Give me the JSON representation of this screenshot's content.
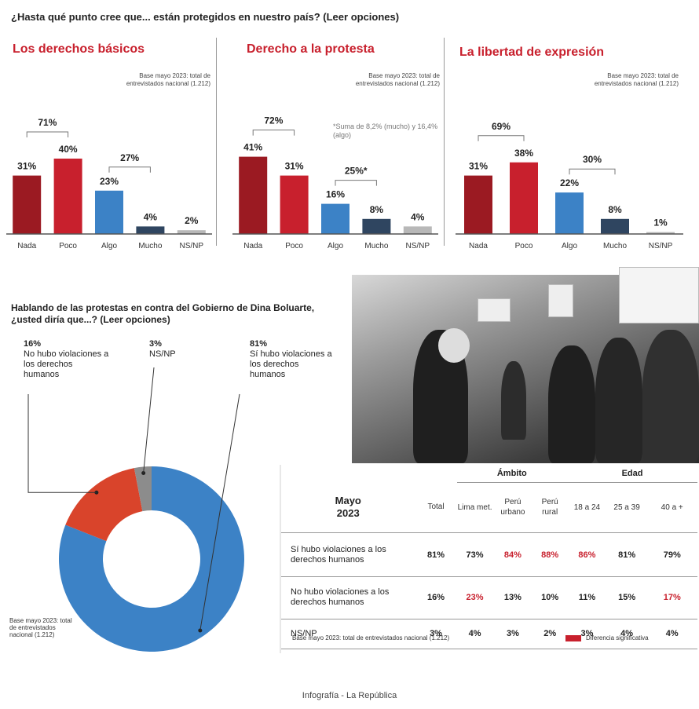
{
  "main_question": "¿Hasta qué punto cree que... están protegidos en nuestro país? (Leer opciones)",
  "colors": {
    "dark_red": "#9b1a22",
    "red": "#c8202d",
    "blue": "#3c82c6",
    "navy": "#2f4560",
    "grey": "#b8b8b8",
    "accent_text": "#c8202d"
  },
  "chart_data": [
    {
      "type": "bar",
      "title": "Los derechos básicos",
      "base_note": "Base mayo 2023: total de entrevistados nacional (1.212)",
      "categories": [
        "Nada",
        "Poco",
        "Algo",
        "Mucho",
        "NS/NP"
      ],
      "values": [
        31,
        40,
        23,
        4,
        2
      ],
      "value_labels": [
        "31%",
        "40%",
        "23%",
        "4%",
        "2%"
      ],
      "groups": [
        {
          "label": "71%",
          "from": 0,
          "to": 1
        },
        {
          "label": "27%",
          "from": 2,
          "to": 3
        }
      ],
      "ylim": [
        0,
        50
      ]
    },
    {
      "type": "bar",
      "title": "Derecho a la protesta",
      "base_note": "Base mayo 2023: total de entrevistados nacional (1.212)",
      "categories": [
        "Nada",
        "Poco",
        "Algo",
        "Mucho",
        "NS/NP"
      ],
      "values": [
        41,
        31,
        16,
        8,
        4
      ],
      "value_labels": [
        "41%",
        "31%",
        "16%",
        "8%",
        "4%"
      ],
      "groups": [
        {
          "label": "72%",
          "from": 0,
          "to": 1
        },
        {
          "label": "25%*",
          "from": 2,
          "to": 3
        }
      ],
      "footnote": "*Suma de 8,2% (mucho) y 16,4% (algo)",
      "ylim": [
        0,
        50
      ]
    },
    {
      "type": "bar",
      "title": "La libertad de expresión",
      "base_note": "Base mayo 2023: total de entrevistados nacional (1.212)",
      "categories": [
        "Nada",
        "Poco",
        "Algo",
        "Mucho",
        "NS/NP"
      ],
      "values": [
        31,
        38,
        22,
        8,
        1
      ],
      "value_labels": [
        "31%",
        "38%",
        "22%",
        "8%",
        "1%"
      ],
      "groups": [
        {
          "label": "69%",
          "from": 0,
          "to": 1
        },
        {
          "label": "30%",
          "from": 2,
          "to": 3
        }
      ],
      "ylim": [
        0,
        50
      ]
    },
    {
      "type": "pie",
      "title": "Hablando de las protestas en contra del Gobierno de Dina Boluarte, ¿usted diría que...? (Leer opciones)",
      "slices": [
        {
          "value": 81,
          "pct": "81%",
          "label": "Sí hubo violaciones a los derechos humanos",
          "color": "#3c82c6"
        },
        {
          "value": 16,
          "pct": "16%",
          "label": "No hubo violaciones a los derechos humanos",
          "color": "#d9442b"
        },
        {
          "value": 3,
          "pct": "3%",
          "label": "NS/NP",
          "color": "#8c8c8c"
        }
      ],
      "base_note": "Base mayo 2023: total de entrevistados nacional (1.212)"
    },
    {
      "type": "table",
      "title_line1": "Mayo",
      "title_line2": "2023",
      "group_headers": {
        "ambito": "Ámbito",
        "edad": "Edad"
      },
      "columns": [
        "Total",
        "Lima met.",
        "Perú urbano",
        "Perú rural",
        "18 a 24",
        "25 a 39",
        "40 a +"
      ],
      "rows": [
        {
          "label": "Sí hubo violaciones a los derechos humanos",
          "values": [
            "81%",
            "73%",
            "84%",
            "88%",
            "86%",
            "81%",
            "79%"
          ],
          "highlight": [
            false,
            false,
            true,
            true,
            true,
            false,
            false
          ]
        },
        {
          "label": "No hubo violaciones a los derechos humanos",
          "values": [
            "16%",
            "23%",
            "13%",
            "10%",
            "11%",
            "15%",
            "17%"
          ],
          "highlight": [
            false,
            true,
            false,
            false,
            false,
            false,
            true
          ]
        },
        {
          "label": "NS/NP",
          "values": [
            "3%",
            "4%",
            "3%",
            "2%",
            "3%",
            "4%",
            "4%"
          ],
          "highlight": [
            false,
            false,
            false,
            false,
            false,
            false,
            false
          ]
        }
      ],
      "base_note": "Base mayo 2023: total de entrevistados nacional (1.212)",
      "legend": "Diferencia significativa"
    }
  ],
  "credit": "Infografía - La República"
}
